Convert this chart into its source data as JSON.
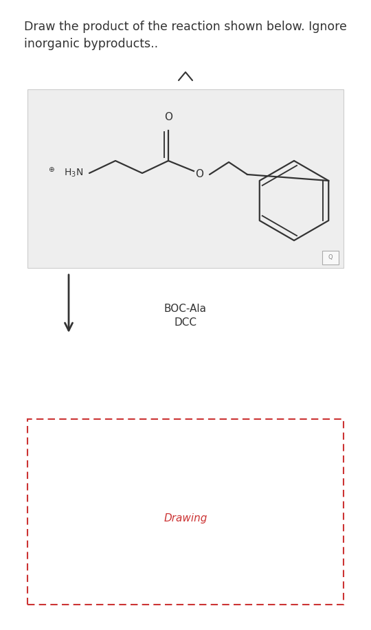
{
  "title_line1": "Draw the product of the reaction shown below. Ignore",
  "title_line2": "inorganic byproducts..",
  "title_fontsize": 12.5,
  "title_color": "#333333",
  "reagent_box_color": "#eeeeee",
  "reagent_box_edge": "#cccccc",
  "reagent1": "BOC-Ala",
  "reagent2": "DCC",
  "reagent_fontsize": 11,
  "drawing_label": "Drawing",
  "drawing_label_color": "#cc3333",
  "drawing_label_fontsize": 11,
  "line_color": "#333333",
  "line_width": 1.6,
  "background_color": "#ffffff"
}
